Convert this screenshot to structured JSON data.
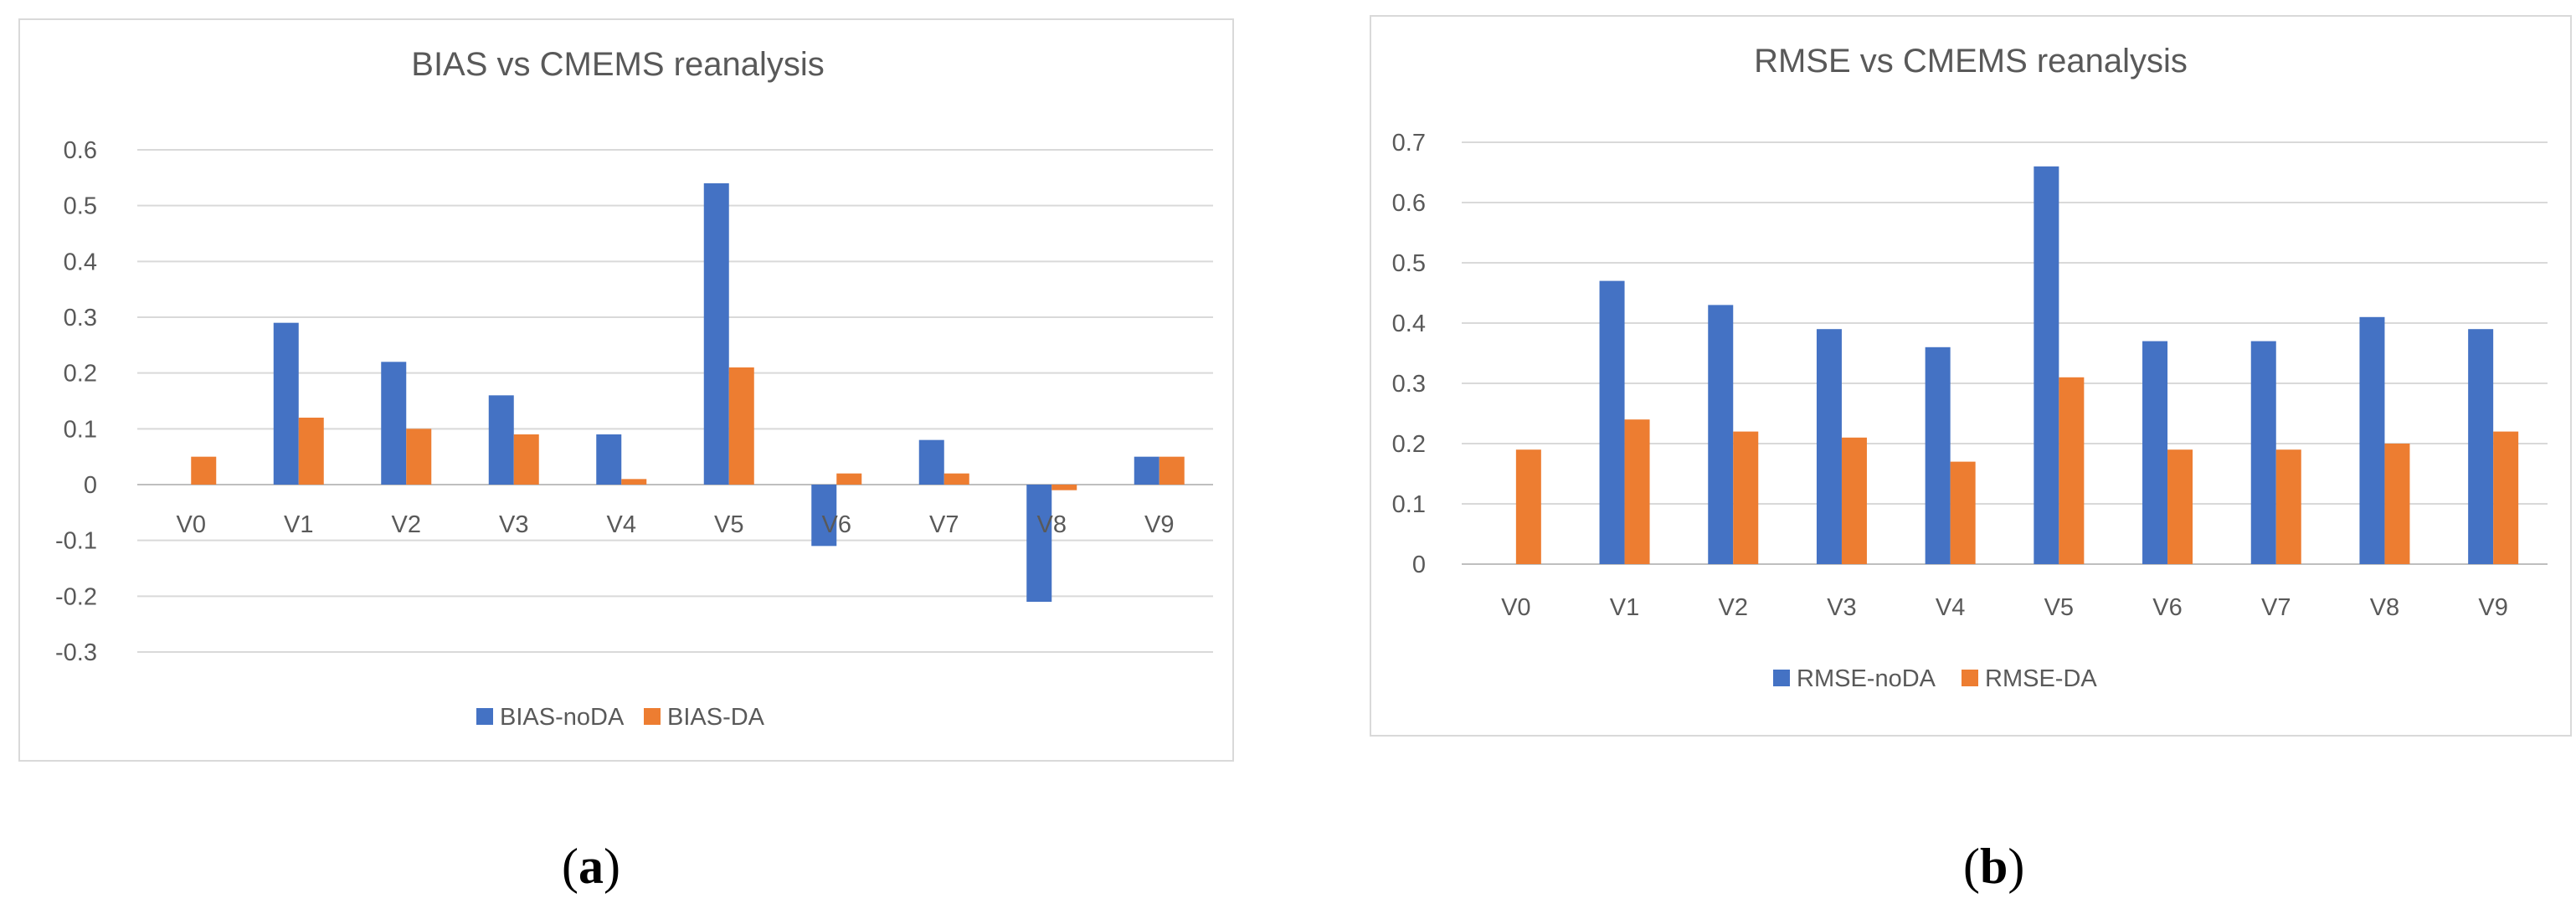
{
  "captions": {
    "a_open": "(",
    "a_letter": "a",
    "a_close": ")",
    "b_open": "(",
    "b_letter": "b",
    "b_close": ")"
  },
  "chart_data": [
    {
      "type": "bar",
      "title": "BIAS vs CMEMS reanalysis",
      "categories": [
        "V0",
        "V1",
        "V2",
        "V3",
        "V4",
        "V5",
        "V6",
        "V7",
        "V8",
        "V9"
      ],
      "series": [
        {
          "name": "BIAS-noDA",
          "color": "#4472c4",
          "values": [
            0,
            0.29,
            0.22,
            0.16,
            0.09,
            0.54,
            -0.11,
            0.08,
            -0.21,
            0.05
          ]
        },
        {
          "name": "BIAS-DA",
          "color": "#ed7d31",
          "values": [
            0.05,
            0.12,
            0.1,
            0.09,
            0.01,
            0.21,
            0.02,
            0.02,
            -0.01,
            0.05
          ]
        }
      ],
      "ylim": [
        -0.3,
        0.6
      ],
      "yticks": [
        "0.6",
        "0.5",
        "0.4",
        "0.3",
        "0.2",
        "0.1",
        "0",
        "-0.1",
        "-0.2",
        "-0.3"
      ],
      "xlabel": "",
      "ylabel": "",
      "grid": true,
      "legend": "bottom"
    },
    {
      "type": "bar",
      "title": "RMSE vs CMEMS reanalysis",
      "categories": [
        "V0",
        "V1",
        "V2",
        "V3",
        "V4",
        "V5",
        "V6",
        "V7",
        "V8",
        "V9"
      ],
      "series": [
        {
          "name": "RMSE-noDA",
          "color": "#4472c4",
          "values": [
            0,
            0.47,
            0.43,
            0.39,
            0.36,
            0.66,
            0.37,
            0.37,
            0.41,
            0.39
          ]
        },
        {
          "name": "RMSE-DA",
          "color": "#ed7d31",
          "values": [
            0.19,
            0.24,
            0.22,
            0.21,
            0.17,
            0.31,
            0.19,
            0.19,
            0.2,
            0.22
          ]
        }
      ],
      "ylim": [
        0,
        0.7
      ],
      "yticks": [
        "0.7",
        "0.6",
        "0.5",
        "0.4",
        "0.3",
        "0.2",
        "0.1",
        "0"
      ],
      "xlabel": "",
      "ylabel": "",
      "grid": true,
      "legend": "bottom"
    }
  ]
}
